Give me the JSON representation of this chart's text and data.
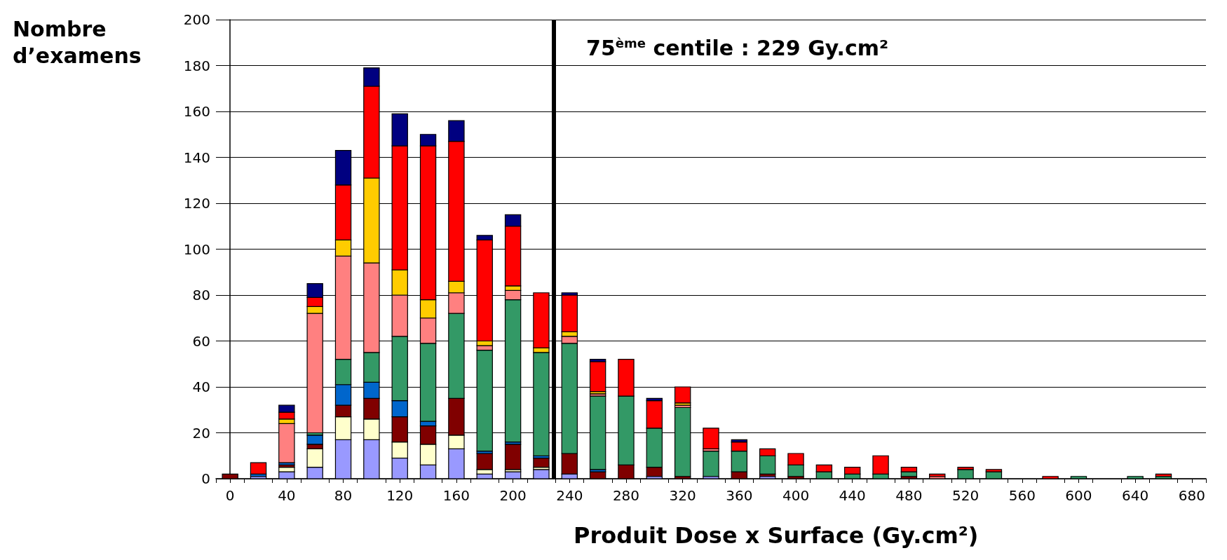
{
  "chart_data": {
    "type": "bar",
    "stacked": true,
    "xlabel": "Produit Dose x Surface (Gy.cm²)",
    "ylabel": "Nombre\nd’examens",
    "x": [
      0,
      20,
      40,
      60,
      80,
      100,
      120,
      140,
      160,
      180,
      200,
      220,
      240,
      260,
      280,
      300,
      320,
      340,
      360,
      380,
      400,
      420,
      440,
      460,
      480,
      500,
      520,
      540,
      560,
      580,
      600,
      620,
      640,
      660,
      680
    ],
    "series": [
      {
        "color": "#9999ff",
        "values": [
          0,
          1,
          3,
          5,
          17,
          17,
          9,
          6,
          13,
          2,
          3,
          4,
          2,
          0,
          0,
          1,
          0,
          1,
          0,
          1,
          0,
          0,
          0,
          0,
          0,
          0,
          0,
          0,
          0,
          0,
          0,
          0,
          0,
          0,
          0
        ]
      },
      {
        "color": "#ffffcc",
        "values": [
          0,
          0,
          2,
          8,
          10,
          9,
          7,
          9,
          6,
          2,
          1,
          1,
          0,
          0,
          0,
          0,
          0,
          0,
          0,
          0,
          0,
          0,
          0,
          0,
          0,
          0,
          0,
          0,
          0,
          0,
          0,
          0,
          0,
          0,
          0
        ]
      },
      {
        "color": "#800000",
        "values": [
          2,
          0,
          1,
          2,
          5,
          9,
          11,
          8,
          16,
          7,
          11,
          4,
          9,
          3,
          6,
          4,
          1,
          0,
          3,
          1,
          1,
          0,
          0,
          0,
          1,
          0,
          0,
          0,
          0,
          0,
          0,
          0,
          0,
          0,
          0
        ]
      },
      {
        "color": "#0066cc",
        "values": [
          0,
          1,
          1,
          4,
          9,
          7,
          7,
          2,
          0,
          1,
          1,
          1,
          0,
          1,
          0,
          0,
          0,
          0,
          0,
          0,
          0,
          0,
          0,
          0,
          0,
          0,
          0,
          0,
          0,
          0,
          0,
          0,
          0,
          0,
          0
        ]
      },
      {
        "color": "#339966",
        "values": [
          0,
          0,
          0,
          1,
          11,
          13,
          28,
          34,
          37,
          44,
          62,
          45,
          48,
          32,
          30,
          17,
          30,
          11,
          9,
          8,
          5,
          3,
          2,
          2,
          2,
          0,
          4,
          3,
          0,
          0,
          1,
          0,
          1,
          1,
          0
        ]
      },
      {
        "color": "#ff8080",
        "values": [
          0,
          0,
          17,
          52,
          45,
          39,
          18,
          11,
          9,
          2,
          4,
          0,
          3,
          1,
          0,
          0,
          1,
          1,
          0,
          0,
          0,
          0,
          0,
          0,
          0,
          1,
          0,
          0,
          0,
          0,
          0,
          0,
          0,
          0,
          0
        ]
      },
      {
        "color": "#ffcc00",
        "values": [
          0,
          0,
          2,
          3,
          7,
          37,
          11,
          8,
          5,
          2,
          2,
          2,
          2,
          1,
          0,
          0,
          1,
          0,
          0,
          0,
          0,
          0,
          0,
          0,
          0,
          0,
          0,
          0,
          0,
          0,
          0,
          0,
          0,
          0,
          0
        ]
      },
      {
        "color": "#ff0000",
        "values": [
          0,
          5,
          3,
          4,
          24,
          40,
          54,
          67,
          61,
          44,
          26,
          24,
          16,
          13,
          16,
          12,
          7,
          9,
          4,
          3,
          5,
          3,
          3,
          8,
          2,
          1,
          1,
          1,
          0,
          1,
          0,
          0,
          0,
          1,
          0
        ]
      },
      {
        "color": "#000080",
        "values": [
          0,
          0,
          3,
          6,
          15,
          8,
          14,
          5,
          9,
          2,
          5,
          0,
          1,
          1,
          0,
          1,
          0,
          0,
          1,
          0,
          0,
          0,
          0,
          0,
          0,
          0,
          0,
          0,
          0,
          0,
          0,
          0,
          0,
          0,
          0
        ]
      }
    ],
    "xlim": [
      -10,
      690
    ],
    "xticks": [
      0,
      40,
      80,
      120,
      160,
      200,
      240,
      280,
      320,
      360,
      400,
      440,
      480,
      520,
      560,
      600,
      640,
      680,
      {
        "value": -10,
        "label": null
      },
      {
        "value": 10,
        "label": null
      },
      {
        "value": 30,
        "label": null
      },
      {
        "value": 50,
        "label": null
      },
      {
        "value": 70,
        "label": null
      },
      {
        "value": 90,
        "label": null
      },
      {
        "value": 110,
        "label": null
      },
      {
        "value": 130,
        "label": null
      },
      {
        "value": 150,
        "label": null
      },
      {
        "value": 170,
        "label": null
      },
      {
        "value": 190,
        "label": null
      },
      {
        "value": 210,
        "label": null
      },
      {
        "value": 230,
        "label": null
      },
      {
        "value": 250,
        "label": null
      },
      {
        "value": 270,
        "label": null
      },
      {
        "value": 290,
        "label": null
      },
      {
        "value": 310,
        "label": null
      },
      {
        "value": 330,
        "label": null
      },
      {
        "value": 350,
        "label": null
      },
      {
        "value": 370,
        "label": null
      },
      {
        "value": 390,
        "label": null
      },
      {
        "value": 410,
        "label": null
      },
      {
        "value": 430,
        "label": null
      },
      {
        "value": 450,
        "label": null
      },
      {
        "value": 470,
        "label": null
      },
      {
        "value": 490,
        "label": null
      },
      {
        "value": 510,
        "label": null
      },
      {
        "value": 530,
        "label": null
      },
      {
        "value": 550,
        "label": null
      },
      {
        "value": 570,
        "label": null
      },
      {
        "value": 590,
        "label": null
      },
      {
        "value": 610,
        "label": null
      },
      {
        "value": 630,
        "label": null
      },
      {
        "value": 650,
        "label": null
      },
      {
        "value": 670,
        "label": null
      },
      {
        "value": 690,
        "label": null
      }
    ],
    "ylim": [
      0,
      200
    ],
    "yticks": [
      0,
      20,
      40,
      60,
      80,
      100,
      120,
      140,
      160,
      180,
      200
    ],
    "grid": "y",
    "ref_lines": [
      {
        "axis": "x",
        "value": 229,
        "label": "75$^{ème}$ centile : 229 Gy.cm²",
        "color": "#000000"
      }
    ]
  }
}
